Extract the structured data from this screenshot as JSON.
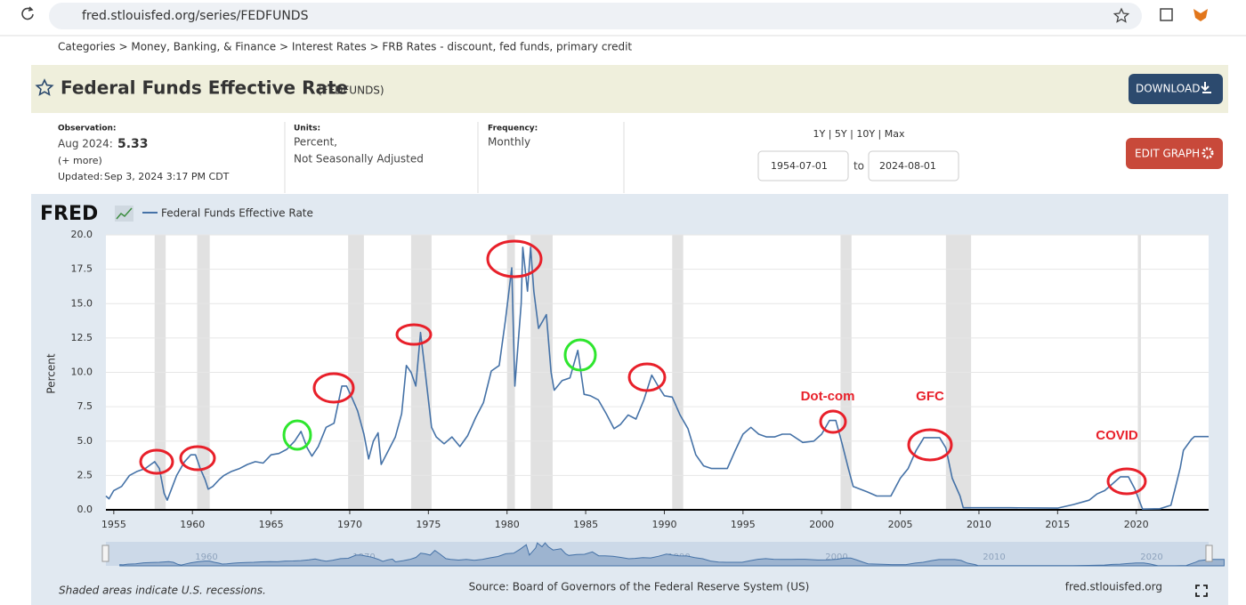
{
  "browser": {
    "url": "fred.stlouisfed.org/series/FEDFUNDS"
  },
  "breadcrumb": "Categories > Money, Banking, & Finance > Interest Rates > FRB Rates - discount, fed funds, primary credit",
  "header": {
    "title": "Federal Funds Effective Rate",
    "series_id": "(FEDFUNDS)",
    "download": "DOWNLOAD"
  },
  "meta": {
    "observation_label": "Observation:",
    "observation_date": "Aug 2024:",
    "observation_value": "5.33",
    "more": "(+ more)",
    "updated_label": "Updated:",
    "updated": "Sep 3, 2024 3:17 PM CDT",
    "units_label": "Units:",
    "units_1": "Percent,",
    "units_2": "Not Seasonally Adjusted",
    "frequency_label": "Frequency:",
    "frequency": "Monthly",
    "ranges": "1Y | 5Y | 10Y | Max",
    "start": "1954-07-01",
    "to": "to",
    "end": "2024-08-01",
    "edit": "EDIT GRAPH"
  },
  "logo": "FRED",
  "annotations": [
    "Dot-com",
    "GFC",
    "COVID"
  ],
  "footer": {
    "note": "Shaded areas indicate U.S. recessions.",
    "source": "Source: Board of Governors of the Federal Reserve System (US)",
    "site": "fred.stlouisfed.org"
  },
  "navigator": {
    "labels": [
      1960,
      1970,
      1980,
      1990,
      2000,
      2010,
      2020
    ]
  },
  "chart_data": {
    "type": "line",
    "ylabel": "Percent",
    "xlim": [
      1954.5,
      2024.6
    ],
    "xticks": [
      1955,
      1960,
      1965,
      1970,
      1975,
      1980,
      1985,
      1990,
      1995,
      2000,
      2005,
      2010,
      2015,
      2020
    ],
    "ylim": [
      0,
      20
    ],
    "yticks": [
      {
        "value": 0,
        "label": "0.0"
      },
      2.5,
      {
        "value": 5,
        "label": "5.0"
      },
      7.5,
      {
        "value": 10,
        "label": "10.0"
      },
      12.5,
      {
        "value": 15,
        "label": "15.0"
      },
      17.5,
      {
        "value": 20,
        "label": "20.0"
      }
    ],
    "grid": true,
    "recession_color": "#e1e1e1",
    "recessions": [
      [
        1957.6,
        1958.3
      ],
      [
        1960.3,
        1961.1
      ],
      [
        1969.9,
        1970.9
      ],
      [
        1973.9,
        1975.2
      ],
      [
        1980.0,
        1980.5
      ],
      [
        1981.5,
        1982.9
      ],
      [
        1990.5,
        1991.2
      ],
      [
        2001.2,
        2001.9
      ],
      [
        2007.9,
        2009.5
      ],
      [
        2020.1,
        2020.3
      ]
    ],
    "x": [
      1954.5,
      1954.7,
      1955.0,
      1955.5,
      1956.0,
      1956.5,
      1957.0,
      1957.6,
      1957.9,
      1958.2,
      1958.4,
      1958.7,
      1959.0,
      1959.5,
      1959.9,
      1960.2,
      1960.5,
      1960.8,
      1961.0,
      1961.3,
      1961.7,
      1962.0,
      1962.5,
      1963.0,
      1963.5,
      1964.0,
      1964.5,
      1965.0,
      1965.5,
      1966.0,
      1966.5,
      1966.9,
      1967.3,
      1967.6,
      1968.0,
      1968.5,
      1969.0,
      1969.5,
      1969.8,
      1970.2,
      1970.5,
      1970.9,
      1971.2,
      1971.5,
      1971.8,
      1972.0,
      1972.5,
      1972.9,
      1973.3,
      1973.6,
      1973.9,
      1974.2,
      1974.5,
      1974.8,
      1975.2,
      1975.5,
      1976.0,
      1976.5,
      1977.0,
      1977.5,
      1978.0,
      1978.5,
      1979.0,
      1979.5,
      1979.9,
      1980.3,
      1980.5,
      1980.9,
      1981.0,
      1981.3,
      1981.5,
      1981.7,
      1982.0,
      1982.5,
      1982.8,
      1983.0,
      1983.5,
      1984.0,
      1984.5,
      1984.9,
      1985.3,
      1985.8,
      1986.3,
      1986.8,
      1987.2,
      1987.7,
      1988.2,
      1988.7,
      1989.2,
      1989.6,
      1990.0,
      1990.5,
      1991.0,
      1991.5,
      1992.0,
      1992.5,
      1993.0,
      1993.5,
      1994.0,
      1994.5,
      1995.0,
      1995.5,
      1996.0,
      1996.5,
      1997.0,
      1997.5,
      1998.0,
      1998.8,
      1999.5,
      2000.0,
      2000.5,
      2000.9,
      2001.3,
      2001.7,
      2002.0,
      2002.9,
      2003.5,
      2004.4,
      2005.0,
      2005.5,
      2006.0,
      2006.5,
      2007.5,
      2007.9,
      2008.3,
      2008.8,
      2009.0,
      2010.0,
      2012.0,
      2015.0,
      2016.0,
      2017.0,
      2017.5,
      2018.0,
      2018.5,
      2019.0,
      2019.5,
      2019.9,
      2020.2,
      2020.4,
      2021.5,
      2022.2,
      2022.5,
      2022.8,
      2023.0,
      2023.5,
      2023.7,
      2024.6
    ],
    "series": [
      {
        "name": "Federal Funds Effective Rate",
        "color": "#4572a7",
        "values": [
          1.0,
          0.8,
          1.4,
          1.7,
          2.5,
          2.8,
          3.0,
          3.5,
          3.0,
          1.2,
          0.7,
          1.6,
          2.5,
          3.5,
          4.0,
          4.0,
          3.0,
          2.2,
          1.5,
          1.7,
          2.2,
          2.5,
          2.8,
          3.0,
          3.3,
          3.5,
          3.4,
          4.0,
          4.1,
          4.4,
          5.0,
          5.7,
          4.5,
          3.9,
          4.6,
          6.0,
          6.3,
          9.0,
          9.0,
          8.0,
          7.2,
          5.5,
          3.7,
          5.0,
          5.6,
          3.3,
          4.4,
          5.3,
          7.0,
          10.5,
          10.0,
          9.0,
          12.9,
          10.0,
          6.0,
          5.3,
          4.8,
          5.3,
          4.6,
          5.4,
          6.7,
          7.8,
          10.1,
          10.5,
          13.8,
          17.6,
          9.0,
          15.0,
          19.1,
          15.9,
          19.1,
          15.9,
          13.2,
          14.2,
          10.0,
          8.7,
          9.4,
          9.6,
          11.6,
          8.4,
          8.3,
          8.0,
          7.0,
          5.9,
          6.2,
          6.9,
          6.6,
          8.0,
          9.8,
          9.0,
          8.3,
          8.2,
          6.9,
          5.9,
          4.0,
          3.2,
          3.0,
          3.0,
          3.0,
          4.3,
          5.5,
          6.0,
          5.5,
          5.3,
          5.3,
          5.5,
          5.5,
          4.9,
          5.0,
          5.5,
          6.5,
          6.5,
          4.8,
          3.0,
          1.7,
          1.3,
          1.0,
          1.0,
          2.3,
          3.0,
          4.3,
          5.25,
          5.25,
          4.5,
          2.3,
          1.0,
          0.15,
          0.15,
          0.15,
          0.12,
          0.38,
          0.7,
          1.15,
          1.4,
          1.9,
          2.4,
          2.4,
          1.55,
          0.65,
          0.05,
          0.08,
          0.33,
          1.68,
          3.08,
          4.33,
          5.12,
          5.33,
          5.33
        ]
      }
    ]
  }
}
